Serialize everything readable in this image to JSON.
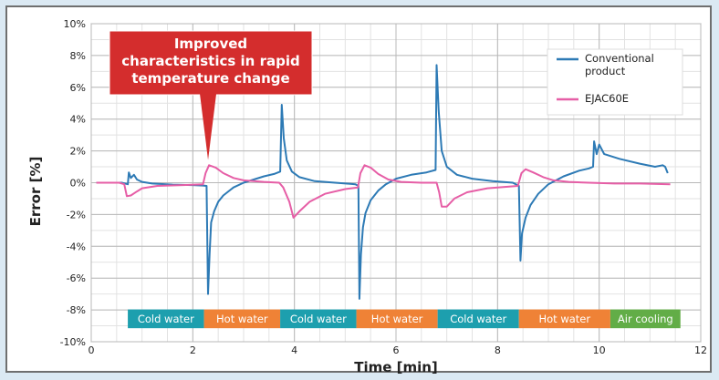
{
  "chart_data": {
    "type": "line",
    "xlabel": "Time [min]",
    "ylabel": "Error [%]",
    "xlim": [
      0,
      12
    ],
    "ylim": [
      -10,
      10
    ],
    "x_ticks": [
      0,
      2,
      4,
      6,
      8,
      10,
      12
    ],
    "y_ticks": [
      10,
      8,
      6,
      4,
      2,
      0,
      -2,
      -4,
      -6,
      -8,
      -10
    ],
    "y_tick_labels": [
      "10%",
      "8%",
      "6%",
      "4%",
      "2%",
      "0%",
      "-2%",
      "-4%",
      "-6%",
      "-8%",
      "-10%"
    ],
    "grid": true,
    "legend_position": "top-right",
    "legend": [
      {
        "name": "Conventional product",
        "lines": [
          "Conventional",
          "product"
        ],
        "color": "#2d7ab5"
      },
      {
        "name": "EJAC60E",
        "lines": [
          "EJAC60E"
        ],
        "color": "#e65ea6"
      }
    ],
    "series": [
      {
        "name": "Conventional product",
        "color": "#2d7ab5",
        "points": [
          [
            0.1,
            0.0
          ],
          [
            0.6,
            0.0
          ],
          [
            0.72,
            -0.1
          ],
          [
            0.74,
            0.65
          ],
          [
            0.78,
            0.3
          ],
          [
            0.84,
            0.5
          ],
          [
            0.9,
            0.2
          ],
          [
            1.0,
            0.05
          ],
          [
            1.2,
            -0.05
          ],
          [
            1.6,
            -0.12
          ],
          [
            2.0,
            -0.15
          ],
          [
            2.2,
            -0.18
          ],
          [
            2.27,
            -0.2
          ],
          [
            2.3,
            -7.0
          ],
          [
            2.33,
            -4.5
          ],
          [
            2.36,
            -2.5
          ],
          [
            2.42,
            -1.8
          ],
          [
            2.5,
            -1.2
          ],
          [
            2.6,
            -0.8
          ],
          [
            2.8,
            -0.3
          ],
          [
            3.0,
            0.0
          ],
          [
            3.2,
            0.2
          ],
          [
            3.4,
            0.4
          ],
          [
            3.6,
            0.55
          ],
          [
            3.72,
            0.7
          ],
          [
            3.75,
            4.9
          ],
          [
            3.79,
            2.8
          ],
          [
            3.85,
            1.4
          ],
          [
            3.95,
            0.7
          ],
          [
            4.1,
            0.35
          ],
          [
            4.4,
            0.1
          ],
          [
            4.8,
            0.0
          ],
          [
            5.2,
            -0.1
          ],
          [
            5.26,
            -0.2
          ],
          [
            5.28,
            -7.3
          ],
          [
            5.31,
            -4.5
          ],
          [
            5.35,
            -2.8
          ],
          [
            5.4,
            -1.9
          ],
          [
            5.5,
            -1.1
          ],
          [
            5.65,
            -0.5
          ],
          [
            5.8,
            -0.1
          ],
          [
            6.0,
            0.25
          ],
          [
            6.3,
            0.5
          ],
          [
            6.6,
            0.65
          ],
          [
            6.78,
            0.8
          ],
          [
            6.8,
            7.4
          ],
          [
            6.84,
            4.5
          ],
          [
            6.9,
            2.0
          ],
          [
            7.0,
            1.0
          ],
          [
            7.2,
            0.5
          ],
          [
            7.5,
            0.25
          ],
          [
            7.9,
            0.1
          ],
          [
            8.3,
            0.0
          ],
          [
            8.42,
            -0.2
          ],
          [
            8.45,
            -4.9
          ],
          [
            8.48,
            -3.2
          ],
          [
            8.55,
            -2.2
          ],
          [
            8.65,
            -1.4
          ],
          [
            8.8,
            -0.7
          ],
          [
            9.0,
            -0.1
          ],
          [
            9.3,
            0.4
          ],
          [
            9.6,
            0.75
          ],
          [
            9.8,
            0.9
          ],
          [
            9.88,
            1.0
          ],
          [
            9.9,
            2.6
          ],
          [
            9.95,
            1.8
          ],
          [
            10.0,
            2.4
          ],
          [
            10.1,
            1.8
          ],
          [
            10.4,
            1.5
          ],
          [
            10.8,
            1.2
          ],
          [
            11.1,
            1.0
          ],
          [
            11.25,
            1.1
          ],
          [
            11.3,
            1.0
          ],
          [
            11.35,
            0.6
          ]
        ]
      },
      {
        "name": "EJAC60E",
        "color": "#e65ea6",
        "points": [
          [
            0.1,
            0.0
          ],
          [
            0.55,
            0.0
          ],
          [
            0.65,
            -0.1
          ],
          [
            0.7,
            -0.85
          ],
          [
            0.78,
            -0.8
          ],
          [
            0.9,
            -0.55
          ],
          [
            1.0,
            -0.35
          ],
          [
            1.3,
            -0.2
          ],
          [
            1.8,
            -0.15
          ],
          [
            2.2,
            -0.1
          ],
          [
            2.25,
            0.6
          ],
          [
            2.32,
            1.1
          ],
          [
            2.45,
            0.95
          ],
          [
            2.6,
            0.6
          ],
          [
            2.8,
            0.3
          ],
          [
            3.0,
            0.15
          ],
          [
            3.4,
            0.05
          ],
          [
            3.7,
            0.0
          ],
          [
            3.78,
            -0.3
          ],
          [
            3.9,
            -1.2
          ],
          [
            3.98,
            -2.2
          ],
          [
            4.1,
            -1.8
          ],
          [
            4.3,
            -1.2
          ],
          [
            4.6,
            -0.7
          ],
          [
            5.0,
            -0.4
          ],
          [
            5.25,
            -0.3
          ],
          [
            5.3,
            0.6
          ],
          [
            5.38,
            1.1
          ],
          [
            5.5,
            0.95
          ],
          [
            5.65,
            0.55
          ],
          [
            5.85,
            0.2
          ],
          [
            6.1,
            0.05
          ],
          [
            6.5,
            0.0
          ],
          [
            6.8,
            0.0
          ],
          [
            6.85,
            -0.6
          ],
          [
            6.9,
            -1.5
          ],
          [
            7.0,
            -1.5
          ],
          [
            7.15,
            -1.0
          ],
          [
            7.4,
            -0.6
          ],
          [
            7.8,
            -0.35
          ],
          [
            8.2,
            -0.25
          ],
          [
            8.4,
            -0.2
          ],
          [
            8.47,
            0.6
          ],
          [
            8.55,
            0.85
          ],
          [
            8.7,
            0.65
          ],
          [
            8.9,
            0.35
          ],
          [
            9.1,
            0.15
          ],
          [
            9.4,
            0.05
          ],
          [
            9.8,
            0.0
          ],
          [
            10.3,
            -0.05
          ],
          [
            10.8,
            -0.05
          ],
          [
            11.4,
            -0.1
          ]
        ]
      }
    ],
    "segments": [
      {
        "label": "Cold water",
        "start": 0.72,
        "end": 2.22,
        "color": "#1d9fae"
      },
      {
        "label": "Hot water",
        "start": 2.22,
        "end": 3.72,
        "color": "#ef8236"
      },
      {
        "label": "Cold water",
        "start": 3.72,
        "end": 5.22,
        "color": "#1d9fae"
      },
      {
        "label": "Hot water",
        "start": 5.22,
        "end": 6.82,
        "color": "#ef8236"
      },
      {
        "label": "Cold water",
        "start": 6.82,
        "end": 8.42,
        "color": "#1d9fae"
      },
      {
        "label": "Hot water",
        "start": 8.42,
        "end": 10.22,
        "color": "#ef8236"
      },
      {
        "label": "Air cooling",
        "start": 10.22,
        "end": 11.6,
        "color": "#62ad47"
      }
    ],
    "annotation": {
      "lines": [
        "Improved",
        "characteristics in rapid",
        "temperature change"
      ],
      "color": "#d42d2d",
      "target_x": 2.3,
      "target_y": 1.2
    }
  }
}
